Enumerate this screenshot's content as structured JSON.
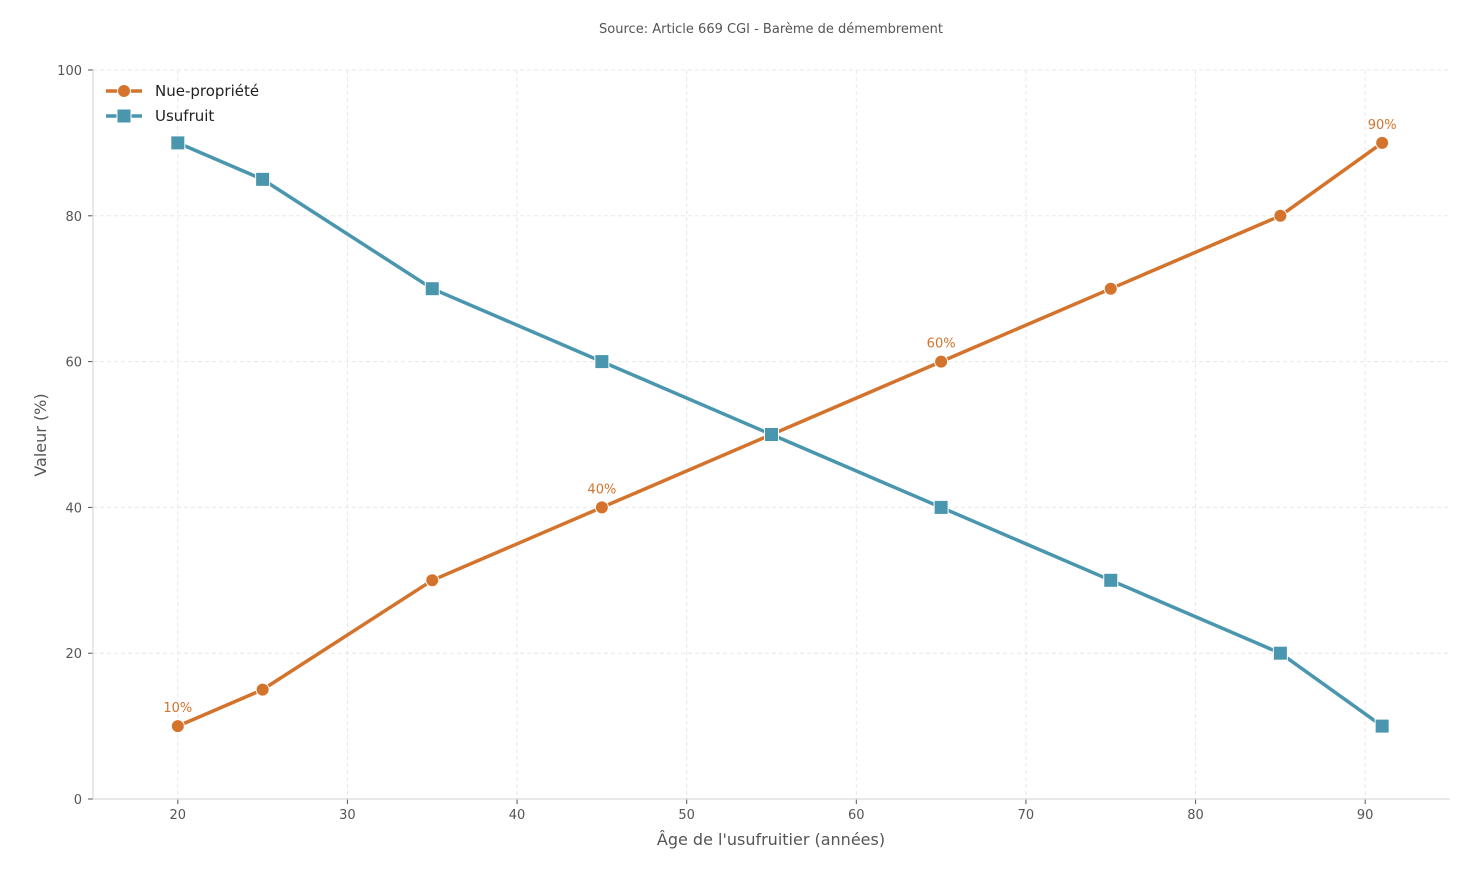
{
  "chart_data": {
    "type": "line",
    "title": "Source: Article 669 CGI - Barème de démembrement",
    "xlabel": "Âge de l'usufruitier (années)",
    "ylabel": "Valeur (%)",
    "xlim": [
      15,
      95
    ],
    "ylim": [
      0,
      100
    ],
    "xticks": [
      20,
      30,
      40,
      50,
      60,
      70,
      80,
      90
    ],
    "yticks": [
      0,
      20,
      40,
      60,
      80,
      100
    ],
    "grid": true,
    "legend_position": "upper left",
    "x": [
      20,
      25,
      35,
      45,
      55,
      65,
      75,
      85,
      91
    ],
    "series": [
      {
        "name": "Nue-propriété",
        "color": "#D4732C",
        "marker": "circle",
        "values": [
          10,
          15,
          30,
          40,
          50,
          60,
          70,
          80,
          90
        ]
      },
      {
        "name": "Usufruit",
        "color": "#4A96AE",
        "marker": "square",
        "values": [
          90,
          85,
          70,
          60,
          50,
          40,
          30,
          20,
          10
        ]
      }
    ],
    "annotations": [
      {
        "x": 20,
        "y": 10,
        "text": "10%",
        "series": "Nue-propriété"
      },
      {
        "x": 45,
        "y": 40,
        "text": "40%",
        "series": "Nue-propriété"
      },
      {
        "x": 65,
        "y": 60,
        "text": "60%",
        "series": "Nue-propriété"
      },
      {
        "x": 91,
        "y": 90,
        "text": "90%",
        "series": "Nue-propriété"
      }
    ]
  }
}
